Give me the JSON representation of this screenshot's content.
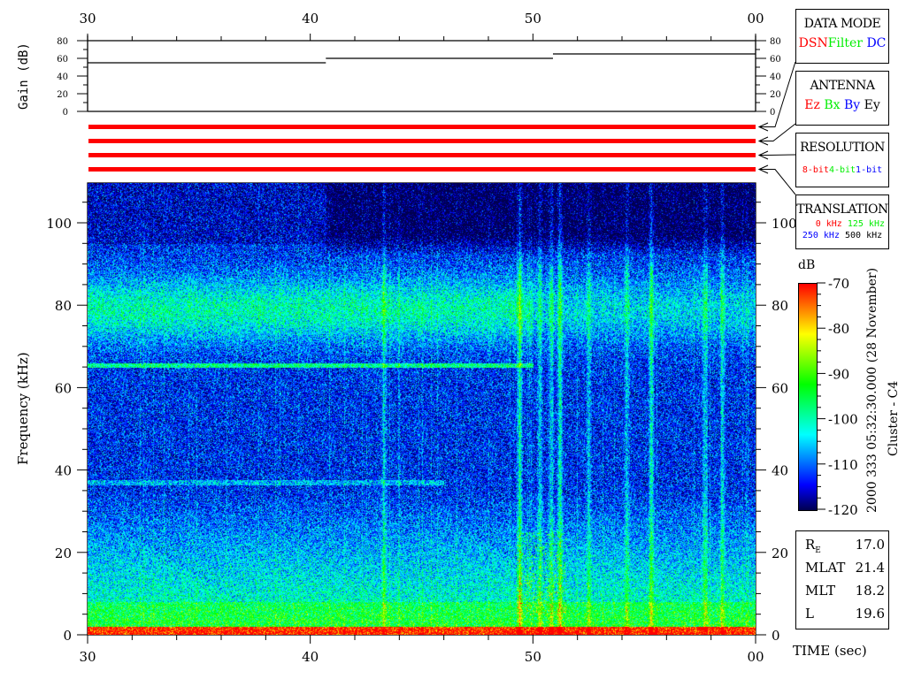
{
  "chart_data": [
    {
      "type": "line",
      "ylabel": "Gain (dB)",
      "ylim": [
        0,
        80
      ],
      "yticks": [
        "80",
        "60",
        "40",
        "20",
        "0"
      ],
      "xlim": [
        30,
        60
      ],
      "xticks": [
        "30",
        "40",
        "50",
        "00"
      ],
      "segments": [
        {
          "t_start": 30,
          "t_end": 40.7,
          "gain": 55
        },
        {
          "t_start": 40.7,
          "t_end": 50.9,
          "gain": 60
        },
        {
          "t_start": 50.9,
          "t_end": 60,
          "gain": 65
        }
      ]
    },
    {
      "type": "heatmap",
      "ylabel": "Frequency (kHz)",
      "xlabel": "TIME (sec)",
      "ylim": [
        0,
        110
      ],
      "yticks": [
        "0",
        "20",
        "40",
        "60",
        "80",
        "100"
      ],
      "xlim": [
        30,
        60
      ],
      "xticks": [
        "30",
        "40",
        "50",
        "00"
      ],
      "colorbar": {
        "label": "dB",
        "range": [
          -120,
          -70
        ],
        "ticks": [
          "-70",
          "-80",
          "-90",
          "-100",
          "-110",
          "-120"
        ],
        "colormap": [
          "#000050",
          "#0000ff",
          "#0080ff",
          "#00ffff",
          "#00ff80",
          "#00ff00",
          "#80ff00",
          "#ffff00",
          "#ff8000",
          "#ff0000"
        ]
      },
      "features": {
        "bands_kHz": [
          65,
          72,
          80,
          85,
          37
        ],
        "burst_times_sec": [
          43.3,
          49.4,
          50.3,
          50.8,
          51.2,
          52.5,
          54.2,
          55.3,
          57.7,
          58.5
        ]
      }
    }
  ],
  "status_bars": {
    "count": 4,
    "color": "#ff0000"
  },
  "legend_boxes": {
    "data_mode": {
      "title": "DATA MODE",
      "items": [
        {
          "label": "DSN",
          "color": "#ff0000"
        },
        {
          "label": "Filter",
          "color": "#00ee00"
        },
        {
          "label": "DC",
          "color": "#0000ff"
        }
      ]
    },
    "antenna": {
      "title": "ANTENNA",
      "items": [
        {
          "label": "Ez",
          "color": "#ff0000"
        },
        {
          "label": "Bx",
          "color": "#00ee00"
        },
        {
          "label": "By",
          "color": "#0000ff"
        },
        {
          "label": "Ey",
          "color": "#000000"
        }
      ]
    },
    "resolution": {
      "title": "RESOLUTION",
      "items": [
        {
          "label": "8-bit",
          "color": "#ff0000"
        },
        {
          "label": "4-bit",
          "color": "#00ee00"
        },
        {
          "label": "1-bit",
          "color": "#0000ff"
        }
      ]
    },
    "translation": {
      "title": "TRANSLATION",
      "items": [
        {
          "label": "0 kHz",
          "color": "#ff0000"
        },
        {
          "label": "125 kHz",
          "color": "#00ee00"
        },
        {
          "label": "250 kHz",
          "color": "#0000ff"
        },
        {
          "label": "500 kHz",
          "color": "#000000"
        }
      ]
    }
  },
  "caption": {
    "date": "2000 333 05:32:30.000 (28 November)",
    "spacecraft": "Cluster - C4"
  },
  "orbit": [
    {
      "label": "R",
      "sub": "E",
      "value": "17.0"
    },
    {
      "label": "MLAT",
      "value": "21.4"
    },
    {
      "label": "MLT",
      "value": "18.2"
    },
    {
      "label": "L",
      "value": "19.6"
    }
  ]
}
